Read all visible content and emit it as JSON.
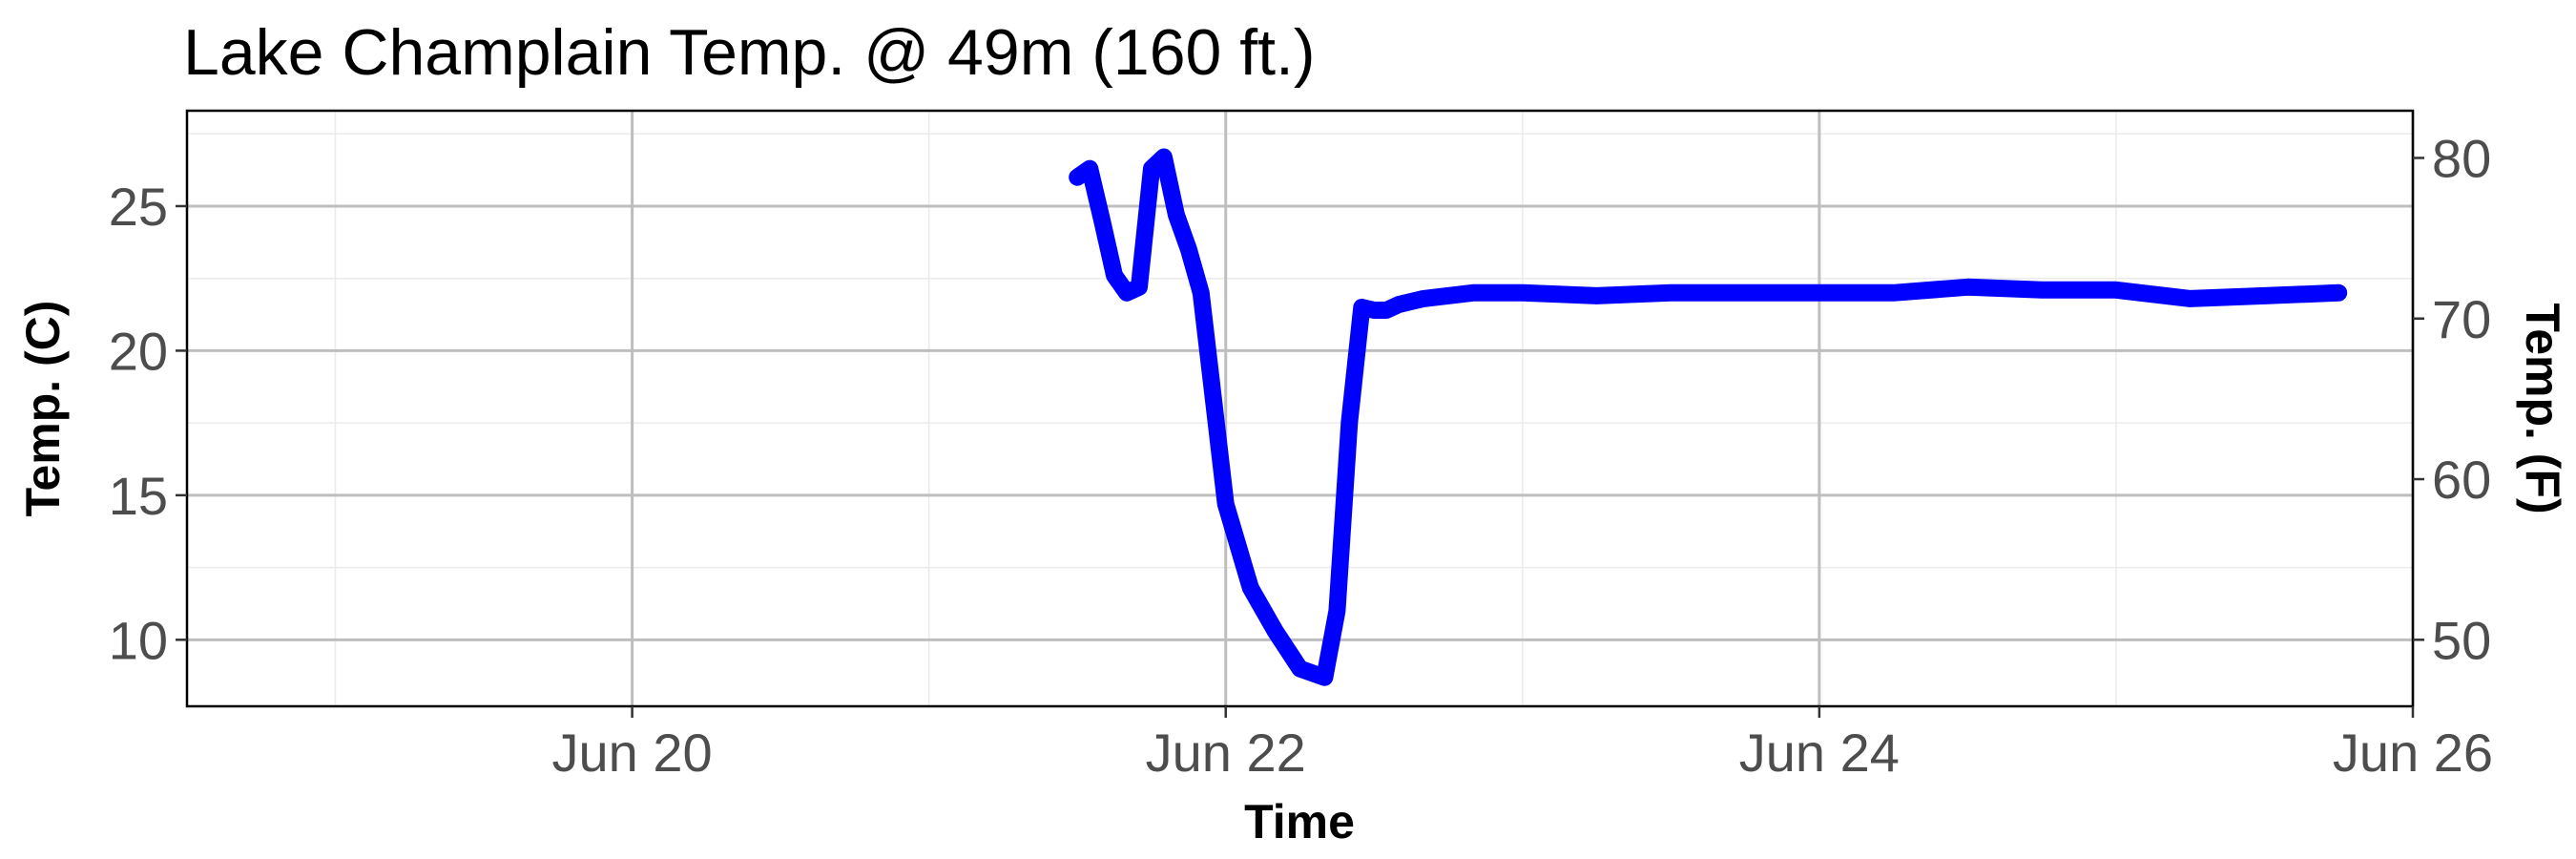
{
  "chart_data": {
    "type": "line",
    "title": "Lake Champlain Temp. @ 49m (160 ft.)",
    "xlabel": "Time",
    "ylabel": "Temp. (C)",
    "y2label": "Temp. (F)",
    "x_ticks": [
      "Jun 20",
      "Jun 22",
      "Jun 24",
      "Jun 26"
    ],
    "y_ticks": [
      10,
      15,
      20,
      25
    ],
    "y2_ticks": [
      50,
      60,
      70,
      80
    ],
    "xlim": [
      "2016-06-18 12:00",
      "2016-06-26 00:00"
    ],
    "ylim": [
      7.7,
      28.3
    ],
    "grid": true,
    "line_color": "#0000ff",
    "series": [
      {
        "x": [
          "2016-06-21 12:00",
          "2016-06-21 13:00",
          "2016-06-21 14:00",
          "2016-06-21 15:00",
          "2016-06-21 16:00",
          "2016-06-21 17:00",
          "2016-06-21 18:00",
          "2016-06-21 19:00",
          "2016-06-21 20:00",
          "2016-06-21 21:00",
          "2016-06-21 22:00",
          "2016-06-22 00:00",
          "2016-06-22 02:00",
          "2016-06-22 04:00",
          "2016-06-22 06:00",
          "2016-06-22 08:00",
          "2016-06-22 09:00",
          "2016-06-22 10:00",
          "2016-06-22 11:00",
          "2016-06-22 12:00",
          "2016-06-22 13:00",
          "2016-06-22 14:00",
          "2016-06-22 16:00",
          "2016-06-22 20:00",
          "2016-06-23 00:00",
          "2016-06-23 06:00",
          "2016-06-23 12:00",
          "2016-06-23 18:00",
          "2016-06-24 00:00",
          "2016-06-24 06:00",
          "2016-06-24 12:00",
          "2016-06-24 18:00",
          "2016-06-25 00:00",
          "2016-06-25 06:00",
          "2016-06-25 12:00",
          "2016-06-25 18:00"
        ],
        "y": [
          26.0,
          26.3,
          24.5,
          22.6,
          22.0,
          22.2,
          26.3,
          26.7,
          24.7,
          23.5,
          22.0,
          14.7,
          11.8,
          10.3,
          9.0,
          8.7,
          11.0,
          17.5,
          21.5,
          21.4,
          21.4,
          21.6,
          21.8,
          22.0,
          22.0,
          21.9,
          22.0,
          22.0,
          22.0,
          22.0,
          22.2,
          22.1,
          22.1,
          21.8,
          21.9,
          22.0
        ]
      }
    ]
  }
}
